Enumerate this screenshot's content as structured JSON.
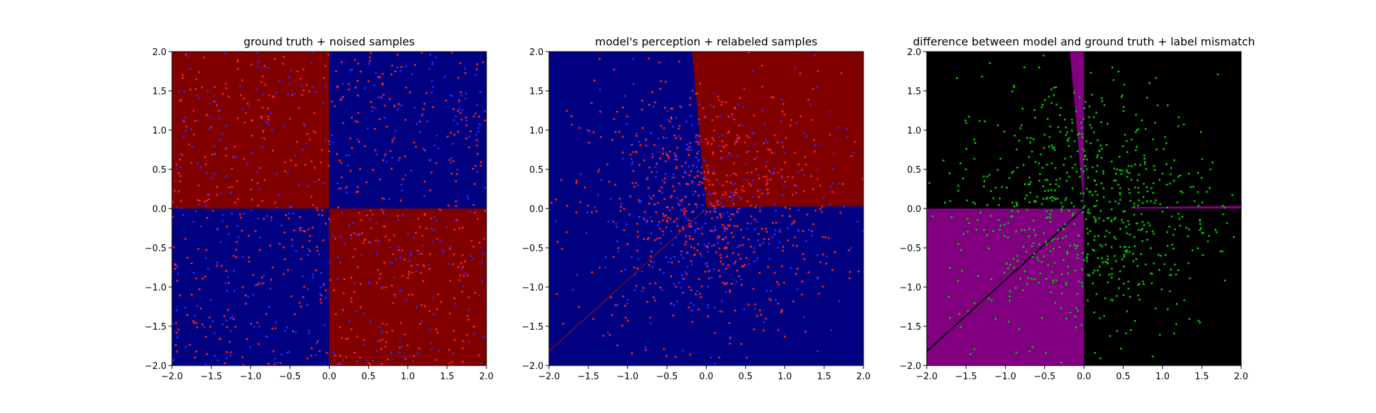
{
  "chart_data": [
    {
      "type": "scatter",
      "title": "ground truth + noised samples",
      "xlabel": "",
      "ylabel": "",
      "xlim": [
        -2.0,
        2.0
      ],
      "ylim": [
        -2.0,
        2.0
      ],
      "x_ticks": [
        "-2.0",
        "-1.5",
        "-1.0",
        "-0.5",
        "0.0",
        "0.5",
        "1.0",
        "1.5",
        "2.0"
      ],
      "y_ticks": [
        "-2.0",
        "-1.5",
        "-1.0",
        "-0.5",
        "0.0",
        "0.5",
        "1.0",
        "1.5",
        "2.0"
      ],
      "grid": false,
      "background_regions": "checkerboard quadrants: top-left and bottom-right dark red (#800000), top-right and bottom-left dark blue (#000080)",
      "series": [
        {
          "color": "#ff2020",
          "count": 600,
          "values_description": "samples spread roughly uniformly over [-2,2]x[-2,2]"
        },
        {
          "color": "#2828ff",
          "count": 400,
          "values_description": "samples spread roughly uniformly over [-2,2]x[-2,2]"
        }
      ],
      "sample_density": "uniform"
    },
    {
      "type": "scatter",
      "title": "model's perception + relabeled samples",
      "xlabel": "",
      "ylabel": "",
      "xlim": [
        -2.0,
        2.0
      ],
      "ylim": [
        -2.0,
        2.0
      ],
      "x_ticks": [
        "-2.0",
        "-1.5",
        "-1.0",
        "-0.5",
        "0.0",
        "0.5",
        "1.0",
        "1.5",
        "2.0"
      ],
      "y_ticks": [
        "-2.0",
        "-1.5",
        "-1.0",
        "-0.5",
        "0.0",
        "0.5",
        "1.0",
        "1.5",
        "2.0"
      ],
      "grid": false,
      "background_regions": "mostly dark blue (#000080); upper-right wedge dark red (#800000) bounded by a line from (-0.18, 2.0) to (0.0, 0.0) and a line from (0.0, 0.02) to (2.0, 0.03); faint diagonal line from (-2.0, -1.82) to (0.0, 0.0)",
      "series": [
        {
          "color": "#ff2020",
          "count": 650,
          "values_description": "samples concentrated near the centre, fewer toward the edges"
        },
        {
          "color": "#2828ff",
          "count": 350,
          "values_description": "samples concentrated near the centre, fewer toward the edges"
        }
      ],
      "sample_density": "centered"
    },
    {
      "type": "scatter",
      "title": "difference between model and ground truth + label mismatch",
      "xlabel": "",
      "ylabel": "",
      "xlim": [
        -2.0,
        2.0
      ],
      "ylim": [
        -2.0,
        2.0
      ],
      "x_ticks": [
        "-2.0",
        "-1.5",
        "-1.0",
        "-0.5",
        "0.0",
        "0.5",
        "1.0",
        "1.5",
        "2.0"
      ],
      "y_ticks": [
        "-2.0",
        "-1.5",
        "-1.0",
        "-0.5",
        "0.0",
        "0.5",
        "1.0",
        "1.5",
        "2.0"
      ],
      "grid": false,
      "background_regions": "black (#000000) where model agrees; purple (#800080) where it differs: the bottom-left quadrant [-2,0]x[-2,0], a thin wedge from (-0.18, 2.0) to (0.0, 0.0) and a thin sliver along y=0 for x in [0.6, 2.0]; black diagonal line from (-2.0, -1.82) to (0.0, 0.0)",
      "series": [
        {
          "color": "#00c000",
          "count": 750,
          "values_description": "mismatched samples concentrated near the centre, fewer toward the edges"
        }
      ],
      "sample_density": "centered"
    }
  ]
}
